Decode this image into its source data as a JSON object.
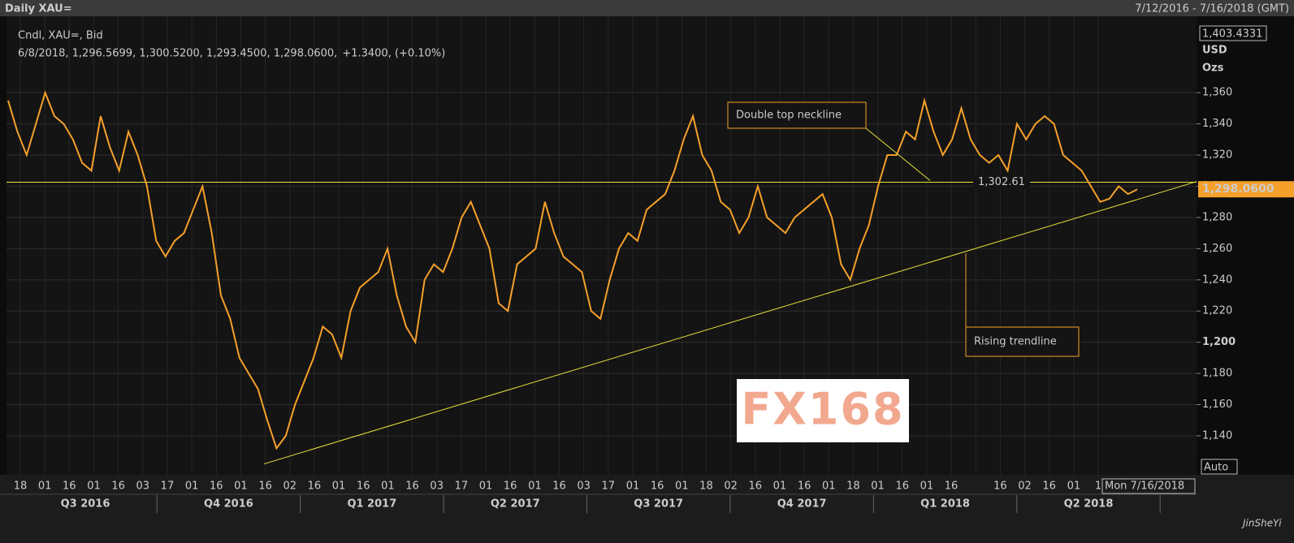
{
  "header": {
    "title": "Daily XAU=",
    "range": "7/12/2016 - 7/16/2018 (GMT)"
  },
  "chart_data": {
    "type": "line",
    "legend_title": "Cndl, XAU=, Bid",
    "quote": "6/8/2018, 1,296.5699, 1,300.5200, 1,293.4500, 1,298.0600,",
    "change": "+1.3400, (+0.10%)",
    "color": "#f5a02a",
    "values": [
      1355,
      1335,
      1320,
      1340,
      1360,
      1345,
      1340,
      1330,
      1315,
      1310,
      1345,
      1325,
      1310,
      1335,
      1320,
      1300,
      1265,
      1255,
      1265,
      1270,
      1285,
      1300,
      1270,
      1230,
      1215,
      1190,
      1180,
      1170,
      1150,
      1132,
      1140,
      1160,
      1175,
      1190,
      1210,
      1205,
      1190,
      1220,
      1235,
      1240,
      1245,
      1260,
      1230,
      1210,
      1200,
      1240,
      1250,
      1245,
      1260,
      1280,
      1290,
      1275,
      1260,
      1225,
      1220,
      1250,
      1255,
      1260,
      1290,
      1270,
      1255,
      1250,
      1245,
      1220,
      1215,
      1240,
      1260,
      1270,
      1265,
      1285,
      1290,
      1295,
      1310,
      1330,
      1345,
      1320,
      1310,
      1290,
      1285,
      1270,
      1280,
      1300,
      1280,
      1275,
      1270,
      1280,
      1285,
      1290,
      1295,
      1280,
      1250,
      1240,
      1260,
      1275,
      1300,
      1320,
      1320,
      1335,
      1330,
      1355,
      1335,
      1320,
      1330,
      1350,
      1330,
      1320,
      1315,
      1320,
      1310,
      1340,
      1330,
      1340,
      1345,
      1340,
      1320,
      1315,
      1310,
      1300,
      1290,
      1292,
      1300,
      1295,
      1298
    ],
    "x_labels": [
      "18",
      "01",
      "16",
      "01",
      "16",
      "03",
      "17",
      "01",
      "16",
      "01",
      "16",
      "02",
      "16",
      "01",
      "16",
      "01",
      "16",
      "03",
      "17",
      "01",
      "16",
      "01",
      "16",
      "03",
      "17",
      "01",
      "16",
      "01",
      "18",
      "02",
      "16",
      "01",
      "16",
      "01",
      "18",
      "01",
      "16",
      "01",
      "16",
      null,
      "16",
      "02",
      "16",
      "01",
      "1"
    ],
    "last_date": "Mon 7/16/2018",
    "quarters": [
      "Q3 2016",
      "Q4 2016",
      "Q1 2017",
      "Q2 2017",
      "Q3 2017",
      "Q4 2017",
      "Q1 2018",
      "Q2 2018"
    ],
    "ylim": [
      1115,
      1409
    ],
    "yticks": [
      {
        "value": 1140,
        "label": "1,140"
      },
      {
        "value": 1160,
        "label": "1,160"
      },
      {
        "value": 1180,
        "label": "1,180"
      },
      {
        "value": 1200,
        "label": "1,200"
      },
      {
        "value": 1220,
        "label": "1,220"
      },
      {
        "value": 1240,
        "label": "1,240"
      },
      {
        "value": 1260,
        "label": "1,260"
      },
      {
        "value": 1280,
        "label": "1,280"
      },
      {
        "value": 1300,
        "label": "1,300"
      },
      {
        "value": 1320,
        "label": "1,320"
      },
      {
        "value": 1340,
        "label": "1,340"
      },
      {
        "value": 1360,
        "label": "1,360"
      }
    ],
    "y_top": {
      "value": 1403.4331,
      "label": "1,403.4331"
    },
    "unit": "USD",
    "unit2": "Ozs",
    "last_price": {
      "value": 1298.06,
      "label": "1,298.0600"
    },
    "neckline": {
      "value": 1302.61,
      "label": "1,302.61"
    },
    "trendline": [
      1122,
      1303
    ],
    "annotations": [
      "Double top neckline",
      "Rising trendline"
    ],
    "scale_mode": "Auto",
    "grid": true
  },
  "watermarks": {
    "logo": "FX168",
    "brand": "JinSheYi"
  }
}
